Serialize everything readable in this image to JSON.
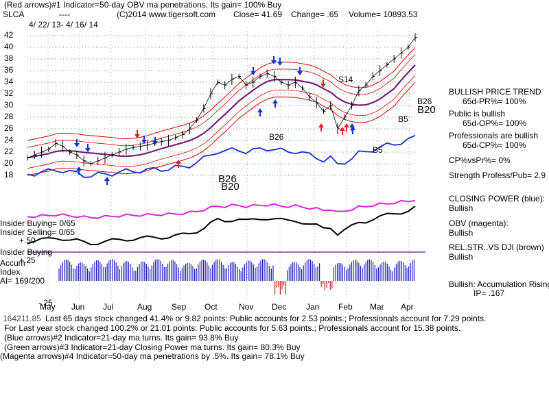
{
  "header": {
    "line1": "(Red arrows)#1 Indicator=50-day OBV ma penetrations. Its gain= 100% Buy",
    "symbol": "SLCA",
    "dashes": "----",
    "copyright": "(C)2014 www.tigersoft.com",
    "close": "Close=  41.69",
    "change": "Change= .65",
    "volume": "Volume= 10893.53",
    "date_range": "4/ 22/ 13- 4/ 16/ 14"
  },
  "left_labels": {
    "insider_buying": "Insider Buying= 0/65",
    "insider_selling": "Insider Selling= 0/65",
    "plus50": "+.50",
    "insider_buying2": "Insider Buying",
    "plus25": "+.25",
    "accum": "Accum",
    "index": "Index",
    "ai": "AI= 169/200",
    "minus25": "-.25"
  },
  "signals": {
    "s14": "S14",
    "b26a": "B26",
    "b26b": "B26",
    "b26c": "B26",
    "b20a": "B20",
    "b20b": "B20",
    "b5a": "B5",
    "b5b": "B5"
  },
  "right_panel": {
    "bullish_trend": "BULLISH PRICE TREND",
    "pr": "65d-PR%= 100%",
    "public_bullish": "Public is bullish",
    "op": "65d-OP%= 100%",
    "pros_bullish": "Professionals are bullish",
    "cp": "65d-CP%= 100%",
    "cp_vs_pr": "CP%vsPr%=  0%",
    "strength": "Strength Profess/Pub= 2.9",
    "closing_power": "CLOSING POWER (blue):",
    "closing_power_val": "Bullish",
    "obv": "OBV (magenta):",
    "obv_val": "Bullish",
    "relstr": "REL.STR..VS DJI (brown)",
    "relstr_val": "Bullish",
    "accum_rising": "Bullish: Accumulation Rising",
    "ip": "IP= .167"
  },
  "footer": {
    "line1": "Last 65 days stock changed  41.4% or  9.82 points:  Public accounts for  2.53 points.;  Professionals account for  7.29 points.",
    "line1_prefix": "164211.85",
    "line2": "For Last year stock changed  100.2% or  21.01 points:  Public accounts for  5.63 points.;  Professionals account for  15.38 points.",
    "line3": "(Blue arrows)#2 Indicator=21-day ma turns. Its gain= 93.8% Buy",
    "line4": "(Green arrows)#3 Indicator=21-day Closing Power ma turns. Its gain= 80.3% Buy",
    "line5": "(Magenta arrows)#4 Indicator=50-day ma penetrations by .5%. Its gain= 78.1% Buy"
  },
  "chart_data": {
    "type": "line",
    "yticks": [
      42,
      40,
      38,
      36,
      34,
      32,
      30,
      28,
      26,
      24,
      22,
      20,
      18
    ],
    "months": [
      "May",
      "Jun",
      "Jul",
      "Aug",
      "Sep",
      "Oct",
      "Nov",
      "Dec",
      "Jan",
      "Feb",
      "Mar",
      "Apr"
    ],
    "ylim": [
      17,
      43
    ],
    "grid": true,
    "series": [
      {
        "values": [
          21,
          21.5,
          22,
          22.5,
          23.5,
          23,
          22,
          21.5,
          20.5,
          20,
          20.5,
          21,
          21.5,
          22,
          22.5,
          22.8,
          23,
          23.2,
          23.5,
          23.8,
          24,
          24.5,
          25,
          26,
          27.5,
          29.5,
          32,
          34,
          33.5,
          34.5,
          35,
          33.5,
          34,
          35,
          35.5,
          35,
          34,
          33.5,
          34,
          33,
          31.5,
          30.5,
          29,
          30,
          26,
          28,
          30,
          32.5,
          33.5,
          35,
          36,
          37,
          38,
          39,
          40,
          41.7
        ]
      }
    ],
    "colors": {
      "price": "#000000",
      "bands": "#d00000",
      "ma": "#7a1c7a",
      "relstr": "#1a2ad6",
      "obv": "#e020e0",
      "cp": "#000000",
      "accum": "#2020c0",
      "accum_neg": "#c02020"
    }
  }
}
